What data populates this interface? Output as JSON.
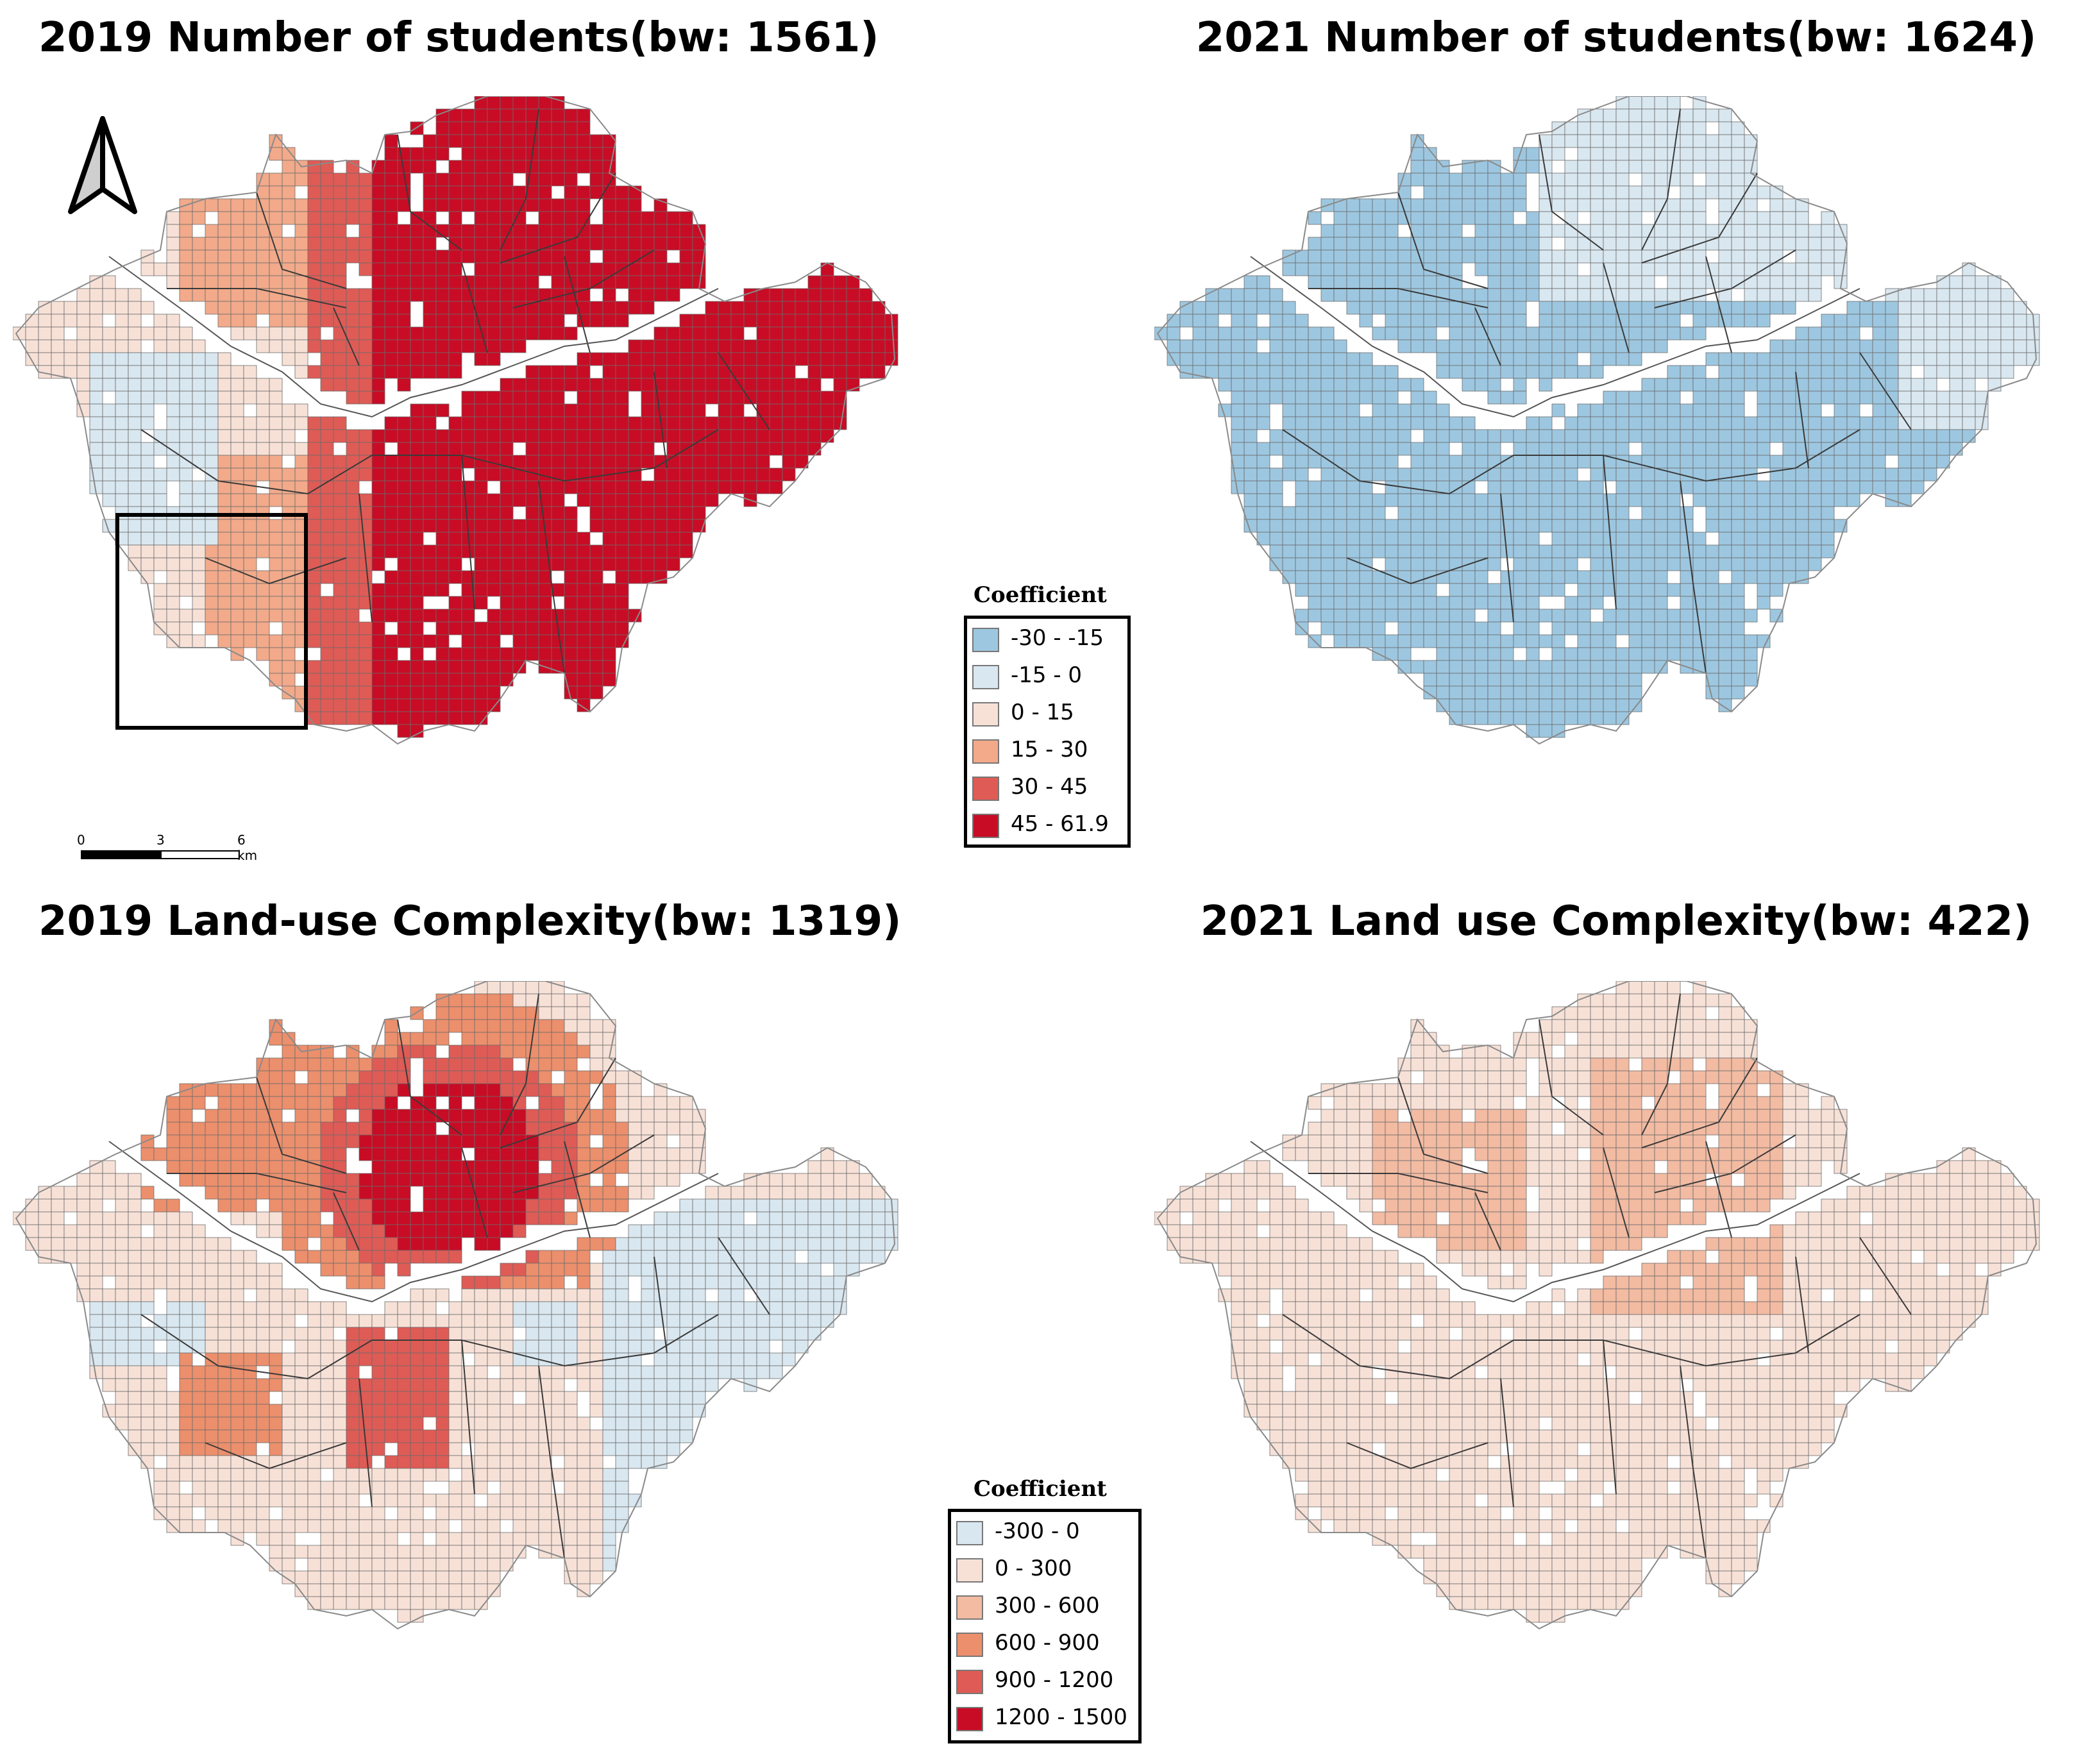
{
  "panels": [
    {
      "id": "p1",
      "title": "2019 Number of students(bw: 1561)",
      "field": "students",
      "year": 2019,
      "legend": "legend1"
    },
    {
      "id": "p2",
      "title": "2021 Number of students(bw: 1624)",
      "field": "students",
      "year": 2021,
      "legend": null
    },
    {
      "id": "p3",
      "title": "2019 Land-use Complexity(bw: 1319)",
      "field": "landuse",
      "year": 2019,
      "legend": "legend2"
    },
    {
      "id": "p4",
      "title": "2021 Land use Complexity(bw: 422)",
      "field": "landuse",
      "year": 2021,
      "legend": null
    }
  ],
  "legend1": {
    "title": "Coefficient",
    "classes": [
      {
        "label": "-30 - -15",
        "color": "#9dc7e0"
      },
      {
        "label": "-15 - 0",
        "color": "#d9e7f0"
      },
      {
        "label": "0 - 15",
        "color": "#f7e1d7"
      },
      {
        "label": "15 - 30",
        "color": "#f2aa8a"
      },
      {
        "label": "30 - 45",
        "color": "#df5b55"
      },
      {
        "label": "45 - 61.9",
        "color": "#c80c25"
      }
    ]
  },
  "legend2": {
    "title": "Coefficient",
    "classes": [
      {
        "label": "-300 - 0",
        "color": "#d9e7f0"
      },
      {
        "label": "0 - 300",
        "color": "#f7e1d7"
      },
      {
        "label": "300 - 600",
        "color": "#f2bba2"
      },
      {
        "label": "600 - 900",
        "color": "#ec8f6c"
      },
      {
        "label": "900 - 1200",
        "color": "#df5b55"
      },
      {
        "label": "1200 - 1500",
        "color": "#c80c25"
      }
    ]
  },
  "scalebar": {
    "labels": [
      "0",
      "3",
      "6 km"
    ]
  },
  "north_arrow": {
    "icon": "north-arrow-icon"
  }
}
